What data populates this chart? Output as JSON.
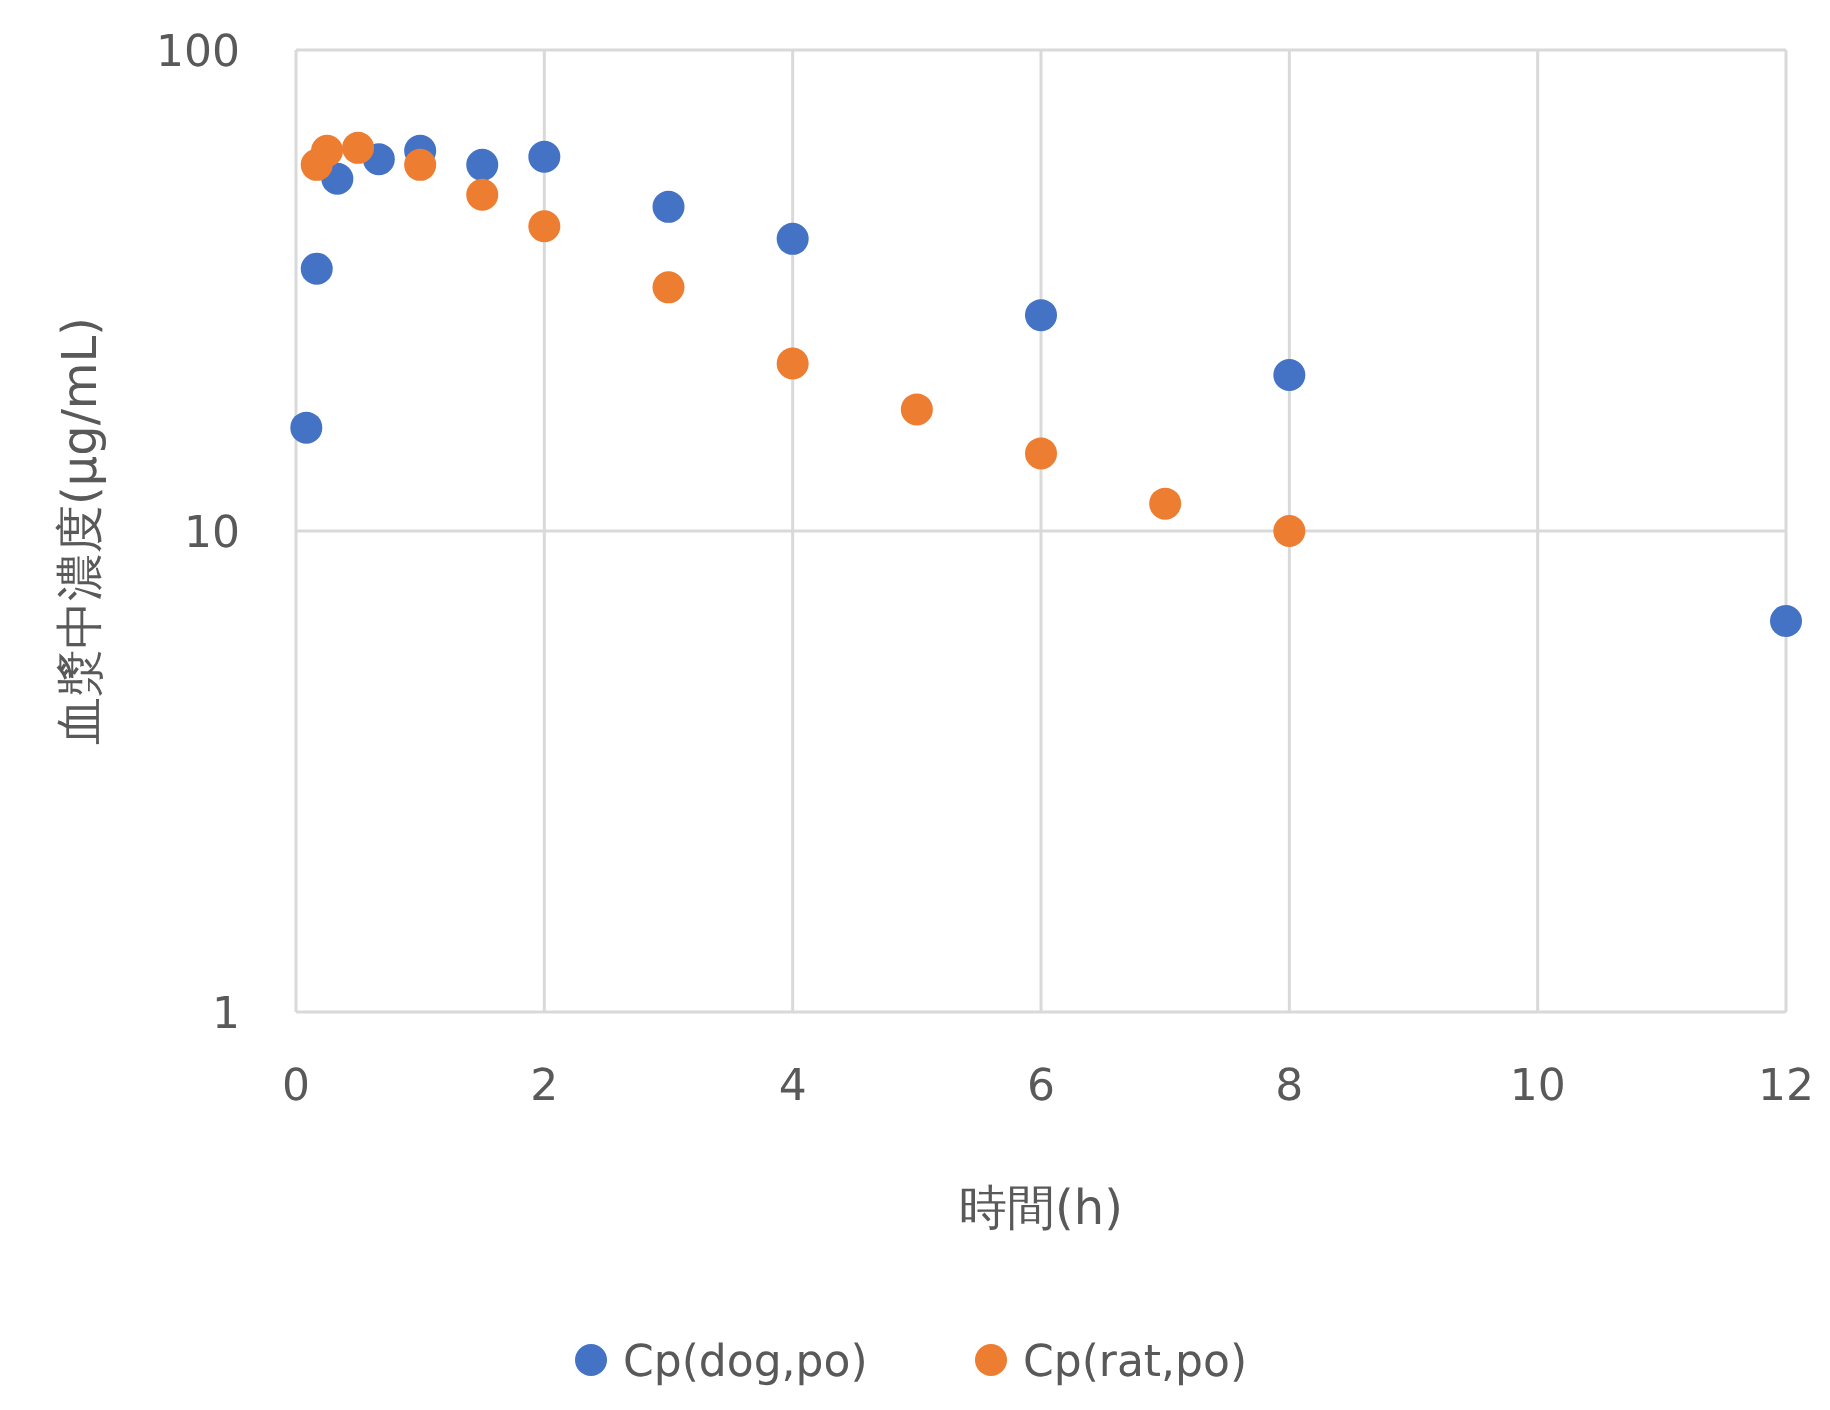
{
  "chart_data": {
    "type": "scatter",
    "xlabel": "時間(h)",
    "ylabel": "血漿中濃度(μg/mL)",
    "log": "y",
    "xlim": [
      0,
      12
    ],
    "xticks": [
      0,
      2,
      4,
      6,
      8,
      10,
      12
    ],
    "ylim": [
      1,
      100
    ],
    "yticks": [
      1,
      10,
      100
    ],
    "grid": true,
    "legend": "bottom",
    "marker": "circle",
    "series": [
      {
        "name": "Cp(dog,po)",
        "color": "#4472c4",
        "x": [
          0.083,
          0.167,
          0.333,
          0.667,
          1,
          1.5,
          2,
          3,
          4,
          6,
          8,
          12
        ],
        "values": [
          16.4,
          35.1,
          54,
          59.3,
          61.7,
          57.7,
          60,
          47.2,
          40.5,
          28.1,
          21.1,
          6.5
        ]
      },
      {
        "name": "Cp(rat,po)",
        "color": "#ed7d31",
        "x": [
          0.167,
          0.25,
          0.5,
          1,
          1.5,
          2,
          3,
          4,
          5,
          6,
          7,
          8
        ],
        "values": [
          57.7,
          61.7,
          62.6,
          57.7,
          50,
          43,
          32.1,
          22.3,
          17.9,
          14.5,
          11.4,
          10
        ]
      }
    ]
  }
}
